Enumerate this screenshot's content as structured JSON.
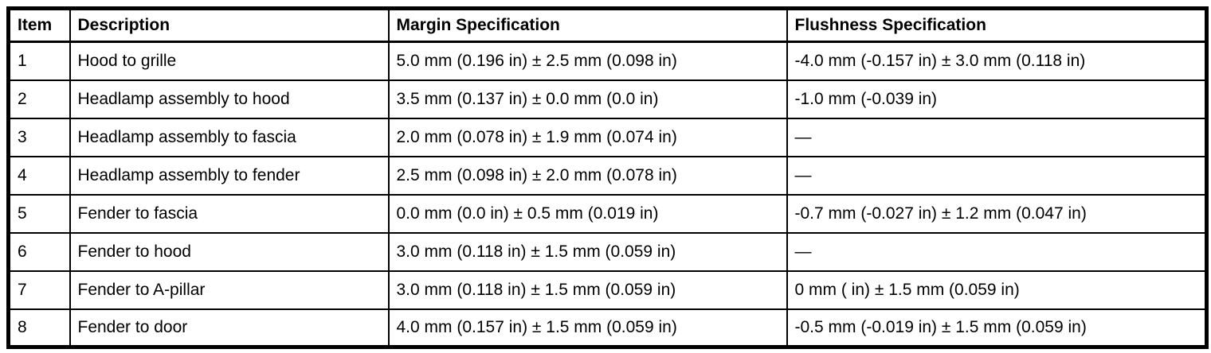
{
  "table": {
    "headers": {
      "item": "Item",
      "description": "Description",
      "margin": "Margin Specification",
      "flushness": "Flushness Specification"
    },
    "rows": [
      {
        "item": "1",
        "description": "Hood to grille",
        "margin": "5.0 mm (0.196 in) ± 2.5 mm (0.098 in)",
        "flushness": "-4.0 mm (-0.157 in) ± 3.0 mm (0.118 in)"
      },
      {
        "item": "2",
        "description": "Headlamp assembly to hood",
        "margin": "3.5 mm (0.137 in) ± 0.0 mm (0.0 in)",
        "flushness": "-1.0 mm (-0.039 in)"
      },
      {
        "item": "3",
        "description": "Headlamp assembly to fascia",
        "margin": "2.0 mm (0.078 in) ± 1.9 mm (0.074 in)",
        "flushness": "—"
      },
      {
        "item": "4",
        "description": "Headlamp assembly to fender",
        "margin": "2.5 mm (0.098 in) ± 2.0 mm (0.078 in)",
        "flushness": "—"
      },
      {
        "item": "5",
        "description": "Fender to fascia",
        "margin": "0.0 mm (0.0 in) ± 0.5 mm (0.019 in)",
        "flushness": "-0.7 mm (-0.027 in) ± 1.2 mm (0.047 in)"
      },
      {
        "item": "6",
        "description": "Fender to hood",
        "margin": "3.0 mm (0.118 in) ± 1.5 mm (0.059 in)",
        "flushness": "—"
      },
      {
        "item": "7",
        "description": "Fender to A-pillar",
        "margin": "3.0 mm (0.118 in) ± 1.5 mm (0.059 in)",
        "flushness": "0 mm ( in) ± 1.5 mm (0.059 in)"
      },
      {
        "item": "8",
        "description": "Fender to door",
        "margin": "4.0 mm (0.157 in) ± 1.5 mm (0.059 in)",
        "flushness": "-0.5 mm (-0.019 in) ± 1.5 mm (0.059 in)"
      }
    ]
  }
}
